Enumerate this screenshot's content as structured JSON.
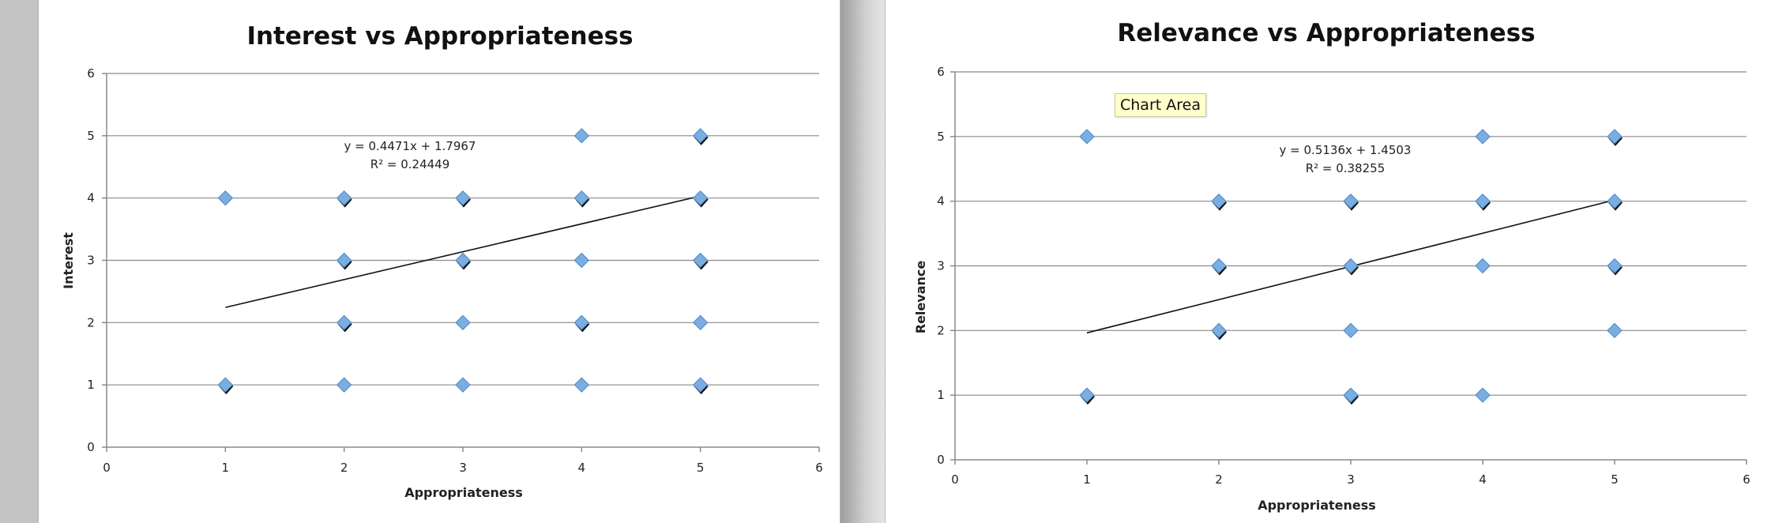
{
  "chart_area_tooltip": "Chart Area",
  "colors": {
    "marker": "#7aaee0",
    "marker_stroke": "#4a86c6",
    "shadow": "#111111",
    "trendline": "#111111",
    "grid": "#8a8a8a"
  },
  "chart_data": [
    {
      "type": "scatter",
      "title": "Interest vs Appropriateness",
      "xlabel": "Appropriateness",
      "ylabel": "Interest",
      "xlim": [
        0,
        6
      ],
      "ylim": [
        0,
        6
      ],
      "x_ticks": [
        "0",
        "1",
        "2",
        "3",
        "4",
        "5",
        "6"
      ],
      "y_ticks": [
        "0",
        "1",
        "2",
        "3",
        "4",
        "5",
        "6"
      ],
      "grid": "horizontal",
      "points": [
        {
          "x": 1,
          "y": 1,
          "overlap": true
        },
        {
          "x": 1,
          "y": 4,
          "overlap": false
        },
        {
          "x": 2,
          "y": 1,
          "overlap": false
        },
        {
          "x": 2,
          "y": 2,
          "overlap": true
        },
        {
          "x": 2,
          "y": 3,
          "overlap": true
        },
        {
          "x": 2,
          "y": 4,
          "overlap": true
        },
        {
          "x": 3,
          "y": 1,
          "overlap": false
        },
        {
          "x": 3,
          "y": 2,
          "overlap": false
        },
        {
          "x": 3,
          "y": 3,
          "overlap": true
        },
        {
          "x": 3,
          "y": 4,
          "overlap": true
        },
        {
          "x": 4,
          "y": 1,
          "overlap": false
        },
        {
          "x": 4,
          "y": 2,
          "overlap": true
        },
        {
          "x": 4,
          "y": 3,
          "overlap": false
        },
        {
          "x": 4,
          "y": 4,
          "overlap": true
        },
        {
          "x": 4,
          "y": 5,
          "overlap": false
        },
        {
          "x": 5,
          "y": 1,
          "overlap": true
        },
        {
          "x": 5,
          "y": 2,
          "overlap": false
        },
        {
          "x": 5,
          "y": 3,
          "overlap": true
        },
        {
          "x": 5,
          "y": 4,
          "overlap": true
        },
        {
          "x": 5,
          "y": 5,
          "overlap": true
        }
      ],
      "trendline": {
        "slope": 0.4471,
        "intercept": 1.7967,
        "x_range": [
          1,
          5
        ],
        "equation": "y = 0.4471x + 1.7967",
        "r2": "R² = 0.24449"
      }
    },
    {
      "type": "scatter",
      "title": "Relevance vs Appropriateness",
      "xlabel": "Appropriateness",
      "ylabel": "Relevance",
      "xlim": [
        0,
        6
      ],
      "ylim": [
        0,
        6
      ],
      "x_ticks": [
        "0",
        "1",
        "2",
        "3",
        "4",
        "5",
        "6"
      ],
      "y_ticks": [
        "0",
        "1",
        "2",
        "3",
        "4",
        "5",
        "6"
      ],
      "grid": "horizontal",
      "points": [
        {
          "x": 1,
          "y": 1,
          "overlap": true
        },
        {
          "x": 1,
          "y": 5,
          "overlap": false
        },
        {
          "x": 2,
          "y": 2,
          "overlap": true
        },
        {
          "x": 2,
          "y": 3,
          "overlap": true
        },
        {
          "x": 2,
          "y": 4,
          "overlap": true
        },
        {
          "x": 3,
          "y": 1,
          "overlap": true
        },
        {
          "x": 3,
          "y": 2,
          "overlap": false
        },
        {
          "x": 3,
          "y": 3,
          "overlap": true
        },
        {
          "x": 3,
          "y": 4,
          "overlap": true
        },
        {
          "x": 4,
          "y": 1,
          "overlap": false
        },
        {
          "x": 4,
          "y": 3,
          "overlap": false
        },
        {
          "x": 4,
          "y": 4,
          "overlap": true
        },
        {
          "x": 4,
          "y": 5,
          "overlap": false
        },
        {
          "x": 5,
          "y": 2,
          "overlap": false
        },
        {
          "x": 5,
          "y": 3,
          "overlap": true
        },
        {
          "x": 5,
          "y": 4,
          "overlap": true
        },
        {
          "x": 5,
          "y": 5,
          "overlap": true
        }
      ],
      "trendline": {
        "slope": 0.5136,
        "intercept": 1.4503,
        "x_range": [
          1,
          5
        ],
        "equation": "y = 0.5136x + 1.4503",
        "r2": "R² = 0.38255"
      }
    }
  ]
}
